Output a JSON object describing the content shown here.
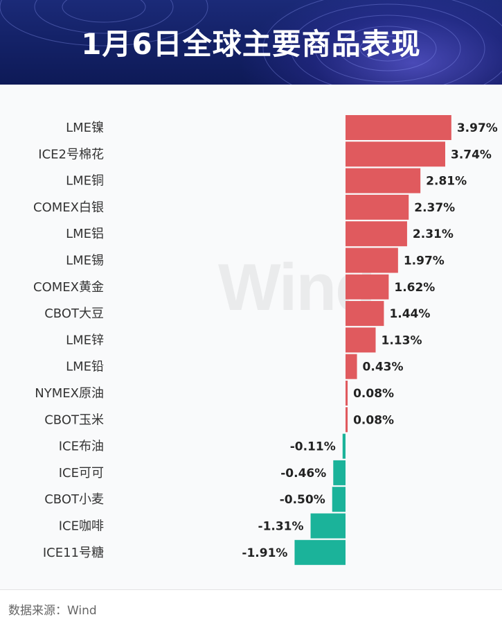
{
  "title": "1月6日全球主要商品表现",
  "watermark": "Wind",
  "source": "数据来源：Wind",
  "colors": {
    "positive": "#e05a5e",
    "negative": "#1bb39a",
    "label": "#222222"
  },
  "chart_data": {
    "type": "bar",
    "orientation": "horizontal",
    "title": "1月6日全球主要商品表现",
    "categories": [
      "LME镍",
      "ICE2号棉花",
      "LME铜",
      "COMEX白银",
      "LME铝",
      "LME锡",
      "COMEX黄金",
      "CBOT大豆",
      "LME锌",
      "LME铅",
      "NYMEX原油",
      "CBOT玉米",
      "ICE布油",
      "ICE可可",
      "CBOT小麦",
      "ICE咖啡",
      "ICE11号糖"
    ],
    "values": [
      3.97,
      3.74,
      2.81,
      2.37,
      2.31,
      1.97,
      1.62,
      1.44,
      1.13,
      0.43,
      0.08,
      0.08,
      -0.11,
      -0.46,
      -0.5,
      -1.31,
      -1.91
    ],
    "labels": [
      "3.97%",
      "3.74%",
      "2.81%",
      "2.37%",
      "2.31%",
      "1.97%",
      "1.62%",
      "1.44%",
      "1.13%",
      "0.43%",
      "0.08%",
      "0.08%",
      "-0.11%",
      "-0.46%",
      "-0.50%",
      "-1.31%",
      "-1.91%"
    ],
    "unit": "%"
  }
}
